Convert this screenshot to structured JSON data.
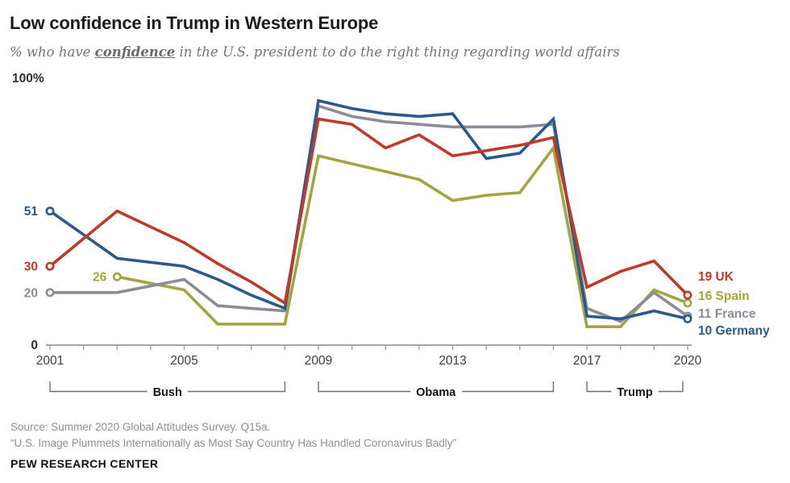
{
  "header": {
    "title": "Low confidence in Trump in Western Europe",
    "subtitle": {
      "prefix": "% who have ",
      "emphasis": "confidence",
      "suffix": " in the U.S. president to do the right thing regarding world affairs"
    }
  },
  "chart_data": {
    "type": "line",
    "title": "Low confidence in Trump in Western Europe",
    "y_axis": {
      "top_label": "100%",
      "zero_label": "0",
      "ylim": [
        0,
        100
      ],
      "grid": false
    },
    "x_axis": {
      "tick_years": [
        2001,
        2002,
        2003,
        2004,
        2005,
        2006,
        2007,
        2008,
        2009,
        2010,
        2011,
        2012,
        2013,
        2014,
        2015,
        2016,
        2017,
        2018,
        2019,
        2020
      ],
      "labeled_years": [
        "2001",
        "2005",
        "2009",
        "2013",
        "2017",
        "2020"
      ]
    },
    "legend_position": "right-end-of-lines",
    "series": [
      {
        "name": "UK",
        "color": "#bf3a28",
        "start_value_label": "30",
        "end_value_label": "19",
        "points": [
          [
            2001,
            30
          ],
          [
            2003,
            51
          ],
          [
            2005,
            39
          ],
          [
            2006,
            31
          ],
          [
            2007,
            24
          ],
          [
            2008,
            16
          ],
          [
            2009,
            86
          ],
          [
            2010,
            84
          ],
          [
            2011,
            75
          ],
          [
            2012,
            80
          ],
          [
            2013,
            72
          ],
          [
            2014,
            74
          ],
          [
            2015,
            76
          ],
          [
            2016,
            79
          ],
          [
            2017,
            22
          ],
          [
            2018,
            28
          ],
          [
            2019,
            32
          ],
          [
            2020,
            19
          ]
        ]
      },
      {
        "name": "Spain",
        "color": "#a1a640",
        "start_value_label": "26",
        "end_value_label": "16",
        "points": [
          [
            2003,
            26
          ],
          [
            2005,
            21
          ],
          [
            2006,
            8
          ],
          [
            2007,
            8
          ],
          [
            2008,
            8
          ],
          [
            2009,
            72
          ],
          [
            2010,
            69
          ],
          [
            2011,
            66
          ],
          [
            2012,
            63
          ],
          [
            2013,
            55
          ],
          [
            2014,
            57
          ],
          [
            2015,
            58
          ],
          [
            2016,
            75
          ],
          [
            2017,
            7
          ],
          [
            2018,
            7
          ],
          [
            2019,
            21
          ],
          [
            2020,
            16
          ]
        ]
      },
      {
        "name": "France",
        "color": "#8e8b96",
        "start_value_label": "20",
        "end_value_label": "11",
        "points": [
          [
            2001,
            20
          ],
          [
            2003,
            20
          ],
          [
            2005,
            25
          ],
          [
            2006,
            15
          ],
          [
            2007,
            14
          ],
          [
            2008,
            13
          ],
          [
            2009,
            91
          ],
          [
            2010,
            87
          ],
          [
            2011,
            85
          ],
          [
            2012,
            84
          ],
          [
            2013,
            83
          ],
          [
            2014,
            83
          ],
          [
            2015,
            83
          ],
          [
            2016,
            84
          ],
          [
            2017,
            14
          ],
          [
            2018,
            9
          ],
          [
            2019,
            20
          ],
          [
            2020,
            11
          ]
        ]
      },
      {
        "name": "Germany",
        "color": "#2a5a8c",
        "start_value_label": "51",
        "end_value_label": "10",
        "points": [
          [
            2001,
            51
          ],
          [
            2003,
            33
          ],
          [
            2005,
            30
          ],
          [
            2006,
            25
          ],
          [
            2007,
            19
          ],
          [
            2008,
            14
          ],
          [
            2009,
            93
          ],
          [
            2010,
            90
          ],
          [
            2011,
            88
          ],
          [
            2012,
            87
          ],
          [
            2013,
            88
          ],
          [
            2014,
            71
          ],
          [
            2015,
            73
          ],
          [
            2016,
            86
          ],
          [
            2017,
            11
          ],
          [
            2018,
            10
          ],
          [
            2019,
            13
          ],
          [
            2020,
            10
          ]
        ]
      }
    ],
    "era_brackets": [
      {
        "label": "Bush",
        "from_year": 2001,
        "to_year": 2008
      },
      {
        "label": "Obama",
        "from_year": 2009,
        "to_year": 2016
      },
      {
        "label": "Trump",
        "from_year": 2017,
        "to_year": 2020
      }
    ]
  },
  "footer": {
    "source_line1": "Source: Summer 2020 Global Attitudes Survey. Q15a.",
    "source_line2": "“U.S. Image Plummets Internationally as Most Say Country Has Handled Coronavirus Badly”",
    "brand": "PEW RESEARCH CENTER"
  }
}
